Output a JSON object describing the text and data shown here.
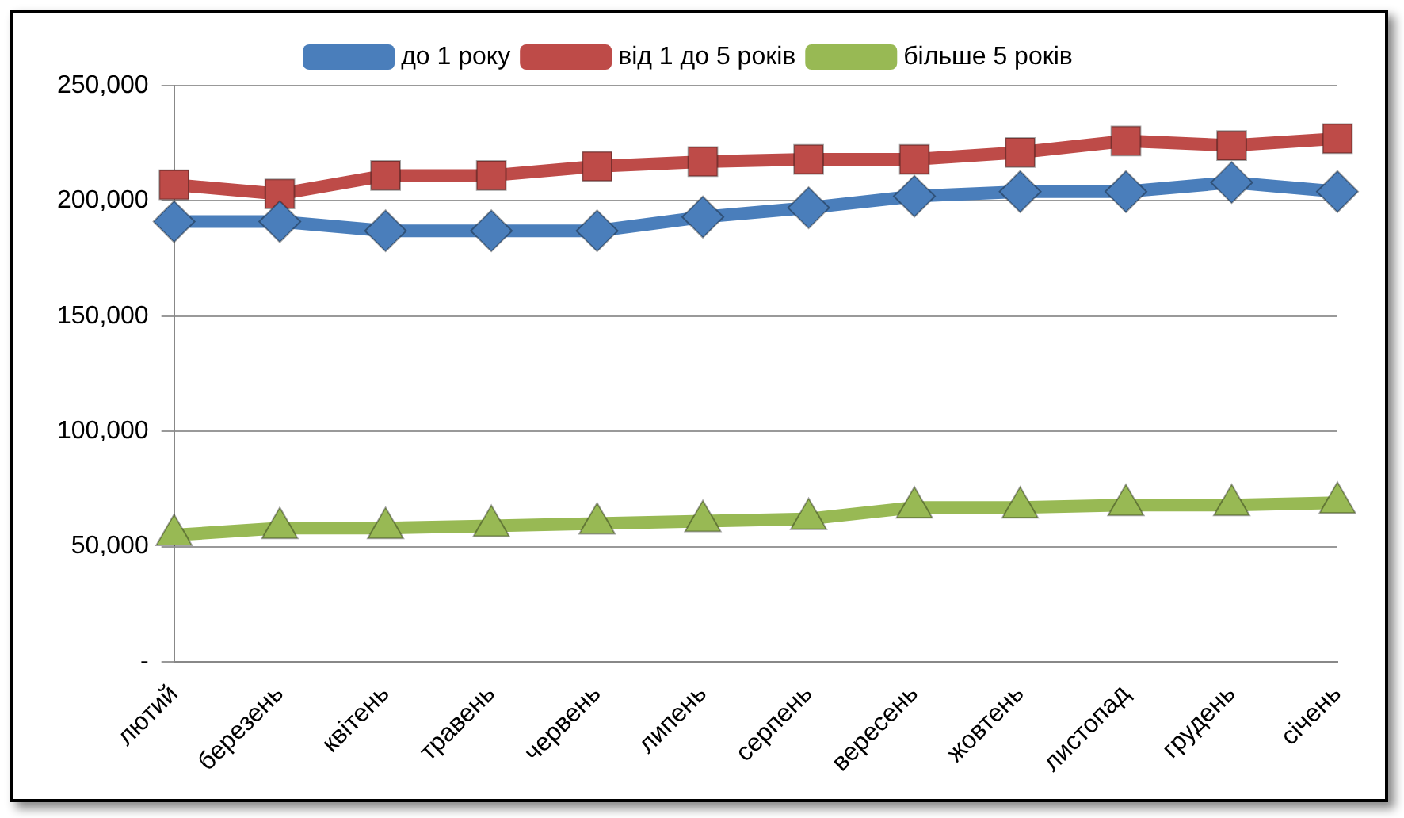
{
  "chart_data": {
    "type": "line",
    "categories": [
      "лютий",
      "березень",
      "квітень",
      "травень",
      "червень",
      "липень",
      "серпень",
      "вересень",
      "жовтень",
      "листопад",
      "грудень",
      "січень"
    ],
    "series": [
      {
        "name": "до 1 року",
        "color": "#4a7ebb",
        "marker": "diamond",
        "values": [
          191000,
          191000,
          187000,
          187000,
          187000,
          193000,
          197000,
          202000,
          204000,
          204000,
          208000,
          204000
        ]
      },
      {
        "name": "від 1 до 5 років",
        "color": "#be4b48",
        "marker": "square",
        "values": [
          207000,
          203000,
          211000,
          211000,
          215000,
          217000,
          218000,
          218000,
          221000,
          226000,
          224000,
          227000
        ]
      },
      {
        "name": "більше 5 років",
        "color": "#98b954",
        "marker": "triangle",
        "values": [
          55000,
          58000,
          58000,
          59000,
          60000,
          61000,
          62000,
          67000,
          67000,
          68000,
          68000,
          69000
        ]
      }
    ],
    "ylim": [
      0,
      250000
    ],
    "yticks": [
      {
        "value": 0,
        "label": "-"
      },
      {
        "value": 50000,
        "label": "50,000"
      },
      {
        "value": 100000,
        "label": "100,000"
      },
      {
        "value": 150000,
        "label": "150,000"
      },
      {
        "value": 200000,
        "label": "200,000"
      },
      {
        "value": 250000,
        "label": "250,000"
      }
    ],
    "grid": "y",
    "legend": "top"
  }
}
